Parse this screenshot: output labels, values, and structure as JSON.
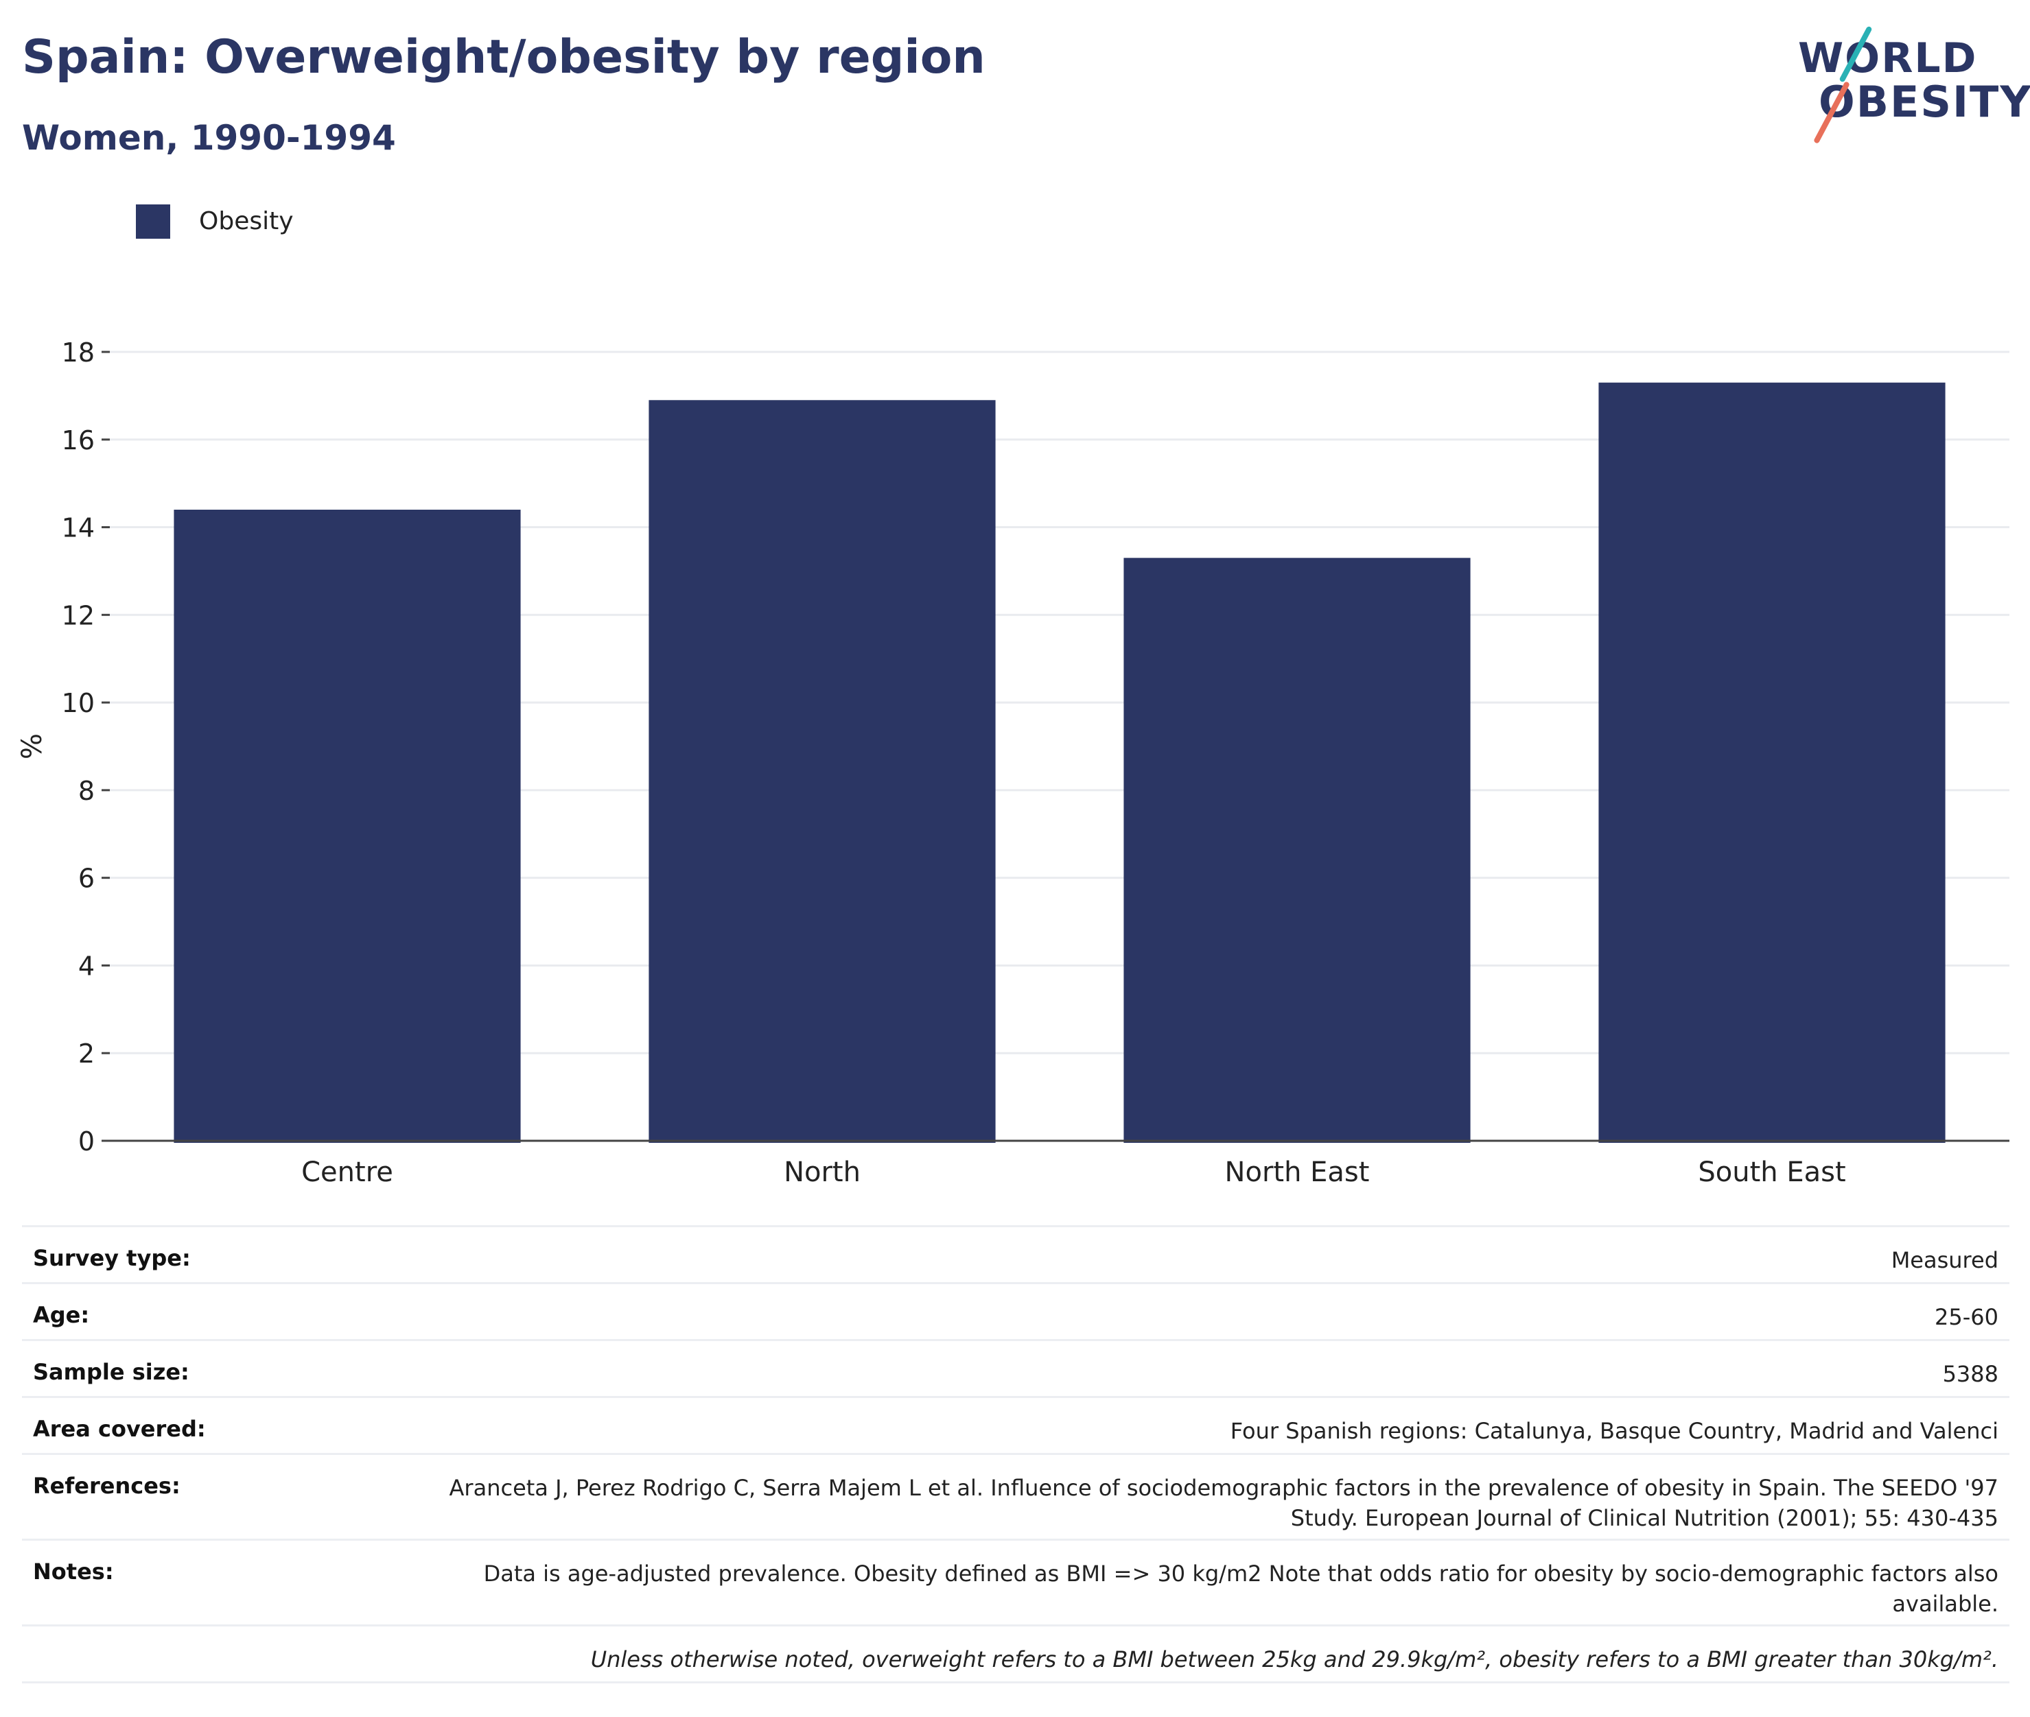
{
  "title": "Spain: Overweight/obesity by region",
  "subtitle": "Women, 1990-1994",
  "logo": {
    "line1": "WORLD",
    "line2": "OBESITY"
  },
  "colors": {
    "bar": "#2b3664",
    "grid": "#e9ebef",
    "accent_teal": "#2ab1b5",
    "accent_coral": "#e8705a"
  },
  "chart_data": {
    "type": "bar",
    "categories": [
      "Centre",
      "North",
      "North East",
      "South East"
    ],
    "series": [
      {
        "name": "Obesity",
        "values": [
          14.4,
          16.9,
          13.3,
          17.3
        ]
      }
    ],
    "ylabel": "%",
    "ylim": [
      0,
      18
    ],
    "yticks": [
      0,
      2,
      4,
      6,
      8,
      10,
      12,
      14,
      16,
      18
    ],
    "grid": true,
    "legend_position": "top-left"
  },
  "meta": {
    "survey_type": {
      "label": "Survey type:",
      "value": "Measured"
    },
    "age": {
      "label": "Age:",
      "value": "25-60"
    },
    "sample_size": {
      "label": "Sample size:",
      "value": "5388"
    },
    "area_covered": {
      "label": "Area covered:",
      "value": "Four Spanish regions: Catalunya, Basque Country, Madrid and Valenci"
    },
    "references": {
      "label": "References:",
      "value": "Aranceta J, Perez Rodrigo C, Serra Majem L et al. Influence of sociodemographic factors in the prevalence of obesity in Spain. The SEEDO '97 Study. European Journal of Clinical Nutrition (2001); 55: 430-435"
    },
    "notes": {
      "label": "Notes:",
      "value": "Data is age-adjusted prevalence. Obesity defined as BMI => 30 kg/m2 Note that odds ratio for obesity by socio-demographic factors also available."
    },
    "footnote": "Unless otherwise noted, overweight refers to a BMI between 25kg and 29.9kg/m², obesity refers to a BMI greater than 30kg/m²."
  }
}
